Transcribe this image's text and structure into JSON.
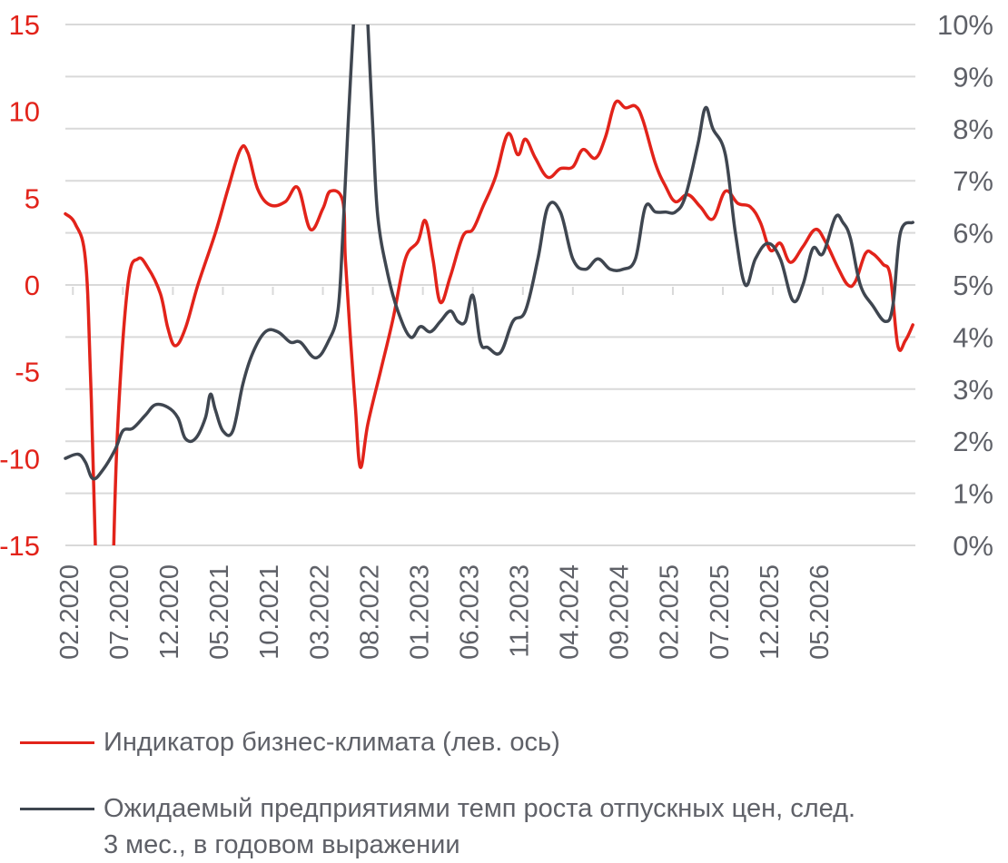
{
  "chart_data": {
    "type": "line",
    "x_tick_labels": [
      "02.2020",
      "07.2020",
      "12.2020",
      "05.2021",
      "10.2021",
      "03.2022",
      "08.2022",
      "01.2023",
      "06.2023",
      "11.2023",
      "04.2024",
      "09.2024",
      "02.2025",
      "07.2025",
      "12.2025",
      "05.2026"
    ],
    "y_left": {
      "min": -15,
      "max": 15,
      "ticks": [
        "15",
        "10",
        "5",
        "0",
        "-5",
        "-10",
        "-15"
      ],
      "color": "#e2231a"
    },
    "y_right": {
      "min": 0,
      "max": 10,
      "ticks": [
        "10%",
        "9%",
        "8%",
        "7%",
        "6%",
        "5%",
        "4%",
        "3%",
        "2%",
        "1%",
        "0%"
      ],
      "color": "#5f6168"
    },
    "grid": true,
    "series": [
      {
        "name": "Индикатор бизнес-климата  (лев. ось)",
        "axis": "left",
        "color": "#e2231a",
        "values": [
          [
            0,
            4.1
          ],
          [
            0.4,
            3.5
          ],
          [
            0.8,
            1.5
          ],
          [
            1.0,
            -5
          ],
          [
            1.2,
            -15
          ],
          [
            1.4,
            -30
          ],
          [
            1.7,
            -30
          ],
          [
            1.9,
            -17
          ],
          [
            2.1,
            -8
          ],
          [
            2.5,
            0
          ],
          [
            2.9,
            1.5
          ],
          [
            3.3,
            1.0
          ],
          [
            3.8,
            -0.5
          ],
          [
            4.1,
            -2.5
          ],
          [
            4.4,
            -3.5
          ],
          [
            4.8,
            -2.5
          ],
          [
            5.3,
            0
          ],
          [
            6.0,
            3.0
          ],
          [
            6.5,
            5.5
          ],
          [
            7.0,
            7.8
          ],
          [
            7.3,
            7.6
          ],
          [
            7.7,
            5.5
          ],
          [
            8.2,
            4.6
          ],
          [
            8.8,
            4.8
          ],
          [
            9.3,
            5.6
          ],
          [
            9.8,
            3.2
          ],
          [
            10.3,
            4.4
          ],
          [
            10.6,
            5.4
          ],
          [
            11.1,
            4.8
          ],
          [
            11.2,
            1.5
          ],
          [
            11.4,
            -3
          ],
          [
            11.6,
            -7
          ],
          [
            11.8,
            -10.5
          ],
          [
            12.1,
            -8
          ],
          [
            12.6,
            -5
          ],
          [
            13.1,
            -2
          ],
          [
            13.6,
            1.5
          ],
          [
            14.1,
            2.5
          ],
          [
            14.4,
            3.7
          ],
          [
            14.7,
            1.5
          ],
          [
            15.0,
            -1.0
          ],
          [
            15.4,
            0.5
          ],
          [
            15.9,
            2.8
          ],
          [
            16.3,
            3.2
          ],
          [
            16.7,
            4.5
          ],
          [
            17.2,
            6.2
          ],
          [
            17.7,
            8.7
          ],
          [
            18.1,
            7.5
          ],
          [
            18.4,
            8.4
          ],
          [
            18.8,
            7.3
          ],
          [
            19.3,
            6.2
          ],
          [
            19.8,
            6.7
          ],
          [
            20.3,
            6.8
          ],
          [
            20.7,
            7.8
          ],
          [
            21.2,
            7.3
          ],
          [
            21.6,
            8.5
          ],
          [
            22.0,
            10.5
          ],
          [
            22.4,
            10.2
          ],
          [
            22.8,
            10.3
          ],
          [
            23.1,
            9.5
          ],
          [
            23.6,
            7.0
          ],
          [
            24.0,
            5.7
          ],
          [
            24.4,
            4.8
          ],
          [
            24.9,
            5.2
          ],
          [
            25.4,
            4.5
          ],
          [
            25.9,
            3.8
          ],
          [
            26.4,
            5.4
          ],
          [
            26.9,
            4.7
          ],
          [
            27.4,
            4.5
          ],
          [
            27.8,
            3.6
          ],
          [
            28.2,
            2.0
          ],
          [
            28.6,
            2.4
          ],
          [
            29.0,
            1.3
          ],
          [
            29.5,
            2.2
          ],
          [
            30.0,
            3.2
          ],
          [
            30.4,
            2.5
          ],
          [
            30.9,
            1.0
          ],
          [
            31.3,
            0
          ],
          [
            31.6,
            0.2
          ],
          [
            32.0,
            1.8
          ],
          [
            32.3,
            1.8
          ],
          [
            32.7,
            1.2
          ],
          [
            33.0,
            0.5
          ],
          [
            33.3,
            -3.5
          ],
          [
            33.6,
            -3.2
          ],
          [
            33.9,
            -2.3
          ]
        ]
      },
      {
        "name": "Ожидаемый предприятиями темп роста отпускных цен, след.  3 мес., в годовом выражении",
        "axis": "right",
        "color": "#3f4650",
        "values": [
          [
            0,
            1.67
          ],
          [
            0.5,
            1.75
          ],
          [
            0.8,
            1.6
          ],
          [
            1.1,
            1.28
          ],
          [
            1.5,
            1.45
          ],
          [
            2.0,
            1.85
          ],
          [
            2.3,
            2.2
          ],
          [
            2.7,
            2.25
          ],
          [
            3.2,
            2.5
          ],
          [
            3.6,
            2.7
          ],
          [
            4.1,
            2.65
          ],
          [
            4.5,
            2.45
          ],
          [
            4.8,
            2.05
          ],
          [
            5.2,
            2.05
          ],
          [
            5.6,
            2.45
          ],
          [
            5.8,
            2.9
          ],
          [
            6.0,
            2.6
          ],
          [
            6.3,
            2.2
          ],
          [
            6.7,
            2.2
          ],
          [
            7.1,
            3.1
          ],
          [
            7.5,
            3.7
          ],
          [
            8.0,
            4.1
          ],
          [
            8.5,
            4.1
          ],
          [
            9.0,
            3.9
          ],
          [
            9.4,
            3.9
          ],
          [
            10.0,
            3.6
          ],
          [
            10.5,
            3.9
          ],
          [
            10.9,
            4.5
          ],
          [
            11.1,
            6
          ],
          [
            11.3,
            8
          ],
          [
            11.5,
            9.8
          ],
          [
            11.7,
            11.5
          ],
          [
            11.9,
            12
          ],
          [
            12.1,
            10
          ],
          [
            12.3,
            8
          ],
          [
            12.5,
            6.3
          ],
          [
            12.9,
            5.2
          ],
          [
            13.3,
            4.5
          ],
          [
            13.8,
            4.0
          ],
          [
            14.2,
            4.2
          ],
          [
            14.6,
            4.1
          ],
          [
            15.0,
            4.3
          ],
          [
            15.4,
            4.5
          ],
          [
            15.7,
            4.3
          ],
          [
            16.0,
            4.3
          ],
          [
            16.3,
            4.8
          ],
          [
            16.6,
            3.9
          ],
          [
            16.9,
            3.8
          ],
          [
            17.4,
            3.7
          ],
          [
            17.9,
            4.3
          ],
          [
            18.4,
            4.5
          ],
          [
            18.9,
            5.5
          ],
          [
            19.3,
            6.5
          ],
          [
            19.8,
            6.4
          ],
          [
            20.3,
            5.5
          ],
          [
            20.8,
            5.3
          ],
          [
            21.3,
            5.5
          ],
          [
            21.8,
            5.3
          ],
          [
            22.3,
            5.3
          ],
          [
            22.8,
            5.5
          ],
          [
            23.2,
            6.5
          ],
          [
            23.6,
            6.4
          ],
          [
            24.0,
            6.4
          ],
          [
            24.4,
            6.4
          ],
          [
            24.8,
            6.7
          ],
          [
            25.3,
            7.7
          ],
          [
            25.6,
            8.4
          ],
          [
            25.9,
            8.0
          ],
          [
            26.4,
            7.5
          ],
          [
            26.8,
            6.0
          ],
          [
            27.2,
            5.0
          ],
          [
            27.6,
            5.5
          ],
          [
            28.1,
            5.8
          ],
          [
            28.6,
            5.5
          ],
          [
            29.1,
            4.7
          ],
          [
            29.5,
            5.0
          ],
          [
            29.9,
            5.7
          ],
          [
            30.3,
            5.6
          ],
          [
            30.8,
            6.3
          ],
          [
            31.1,
            6.2
          ],
          [
            31.4,
            5.9
          ],
          [
            31.8,
            5.0
          ],
          [
            32.3,
            4.6
          ],
          [
            32.8,
            4.3
          ],
          [
            33.1,
            4.6
          ],
          [
            33.4,
            6.0
          ],
          [
            33.9,
            6.2
          ]
        ]
      }
    ]
  },
  "legend": {
    "item1": "Индикатор бизнес-климата  (лев. ось)",
    "item2_line1": "Ожидаемый предприятиями темп роста отпускных цен, след.",
    "item2_line2": "3 мес., в годовом выражении"
  }
}
